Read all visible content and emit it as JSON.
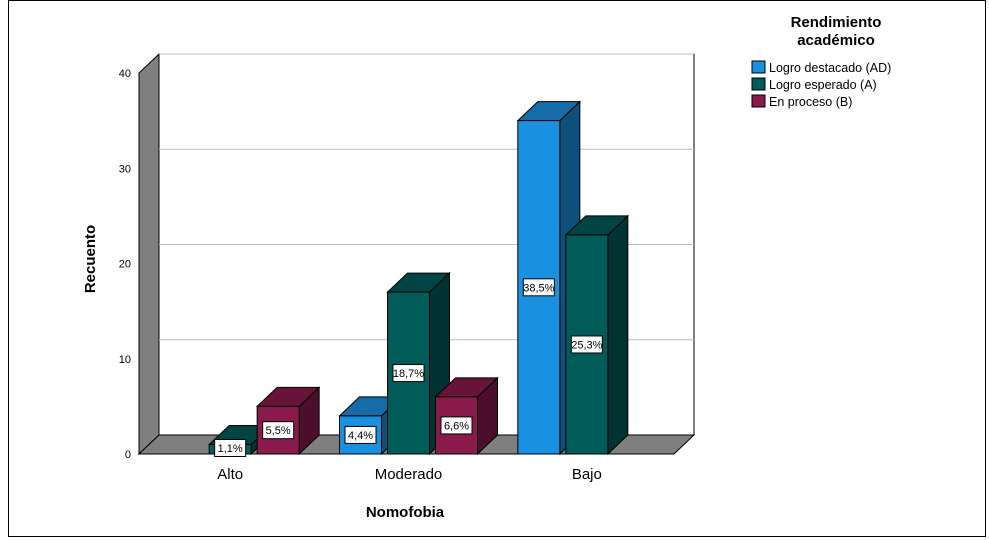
{
  "chart_data": {
    "type": "bar",
    "style": "3d-clustered",
    "title": "",
    "xlabel": "Nomofobia",
    "ylabel": "Recuento",
    "categories": [
      "Alto",
      "Moderado",
      "Bajo"
    ],
    "ylim": [
      0,
      40
    ],
    "yticks": [
      "0",
      "10",
      "20",
      "30",
      "40"
    ],
    "grid": true,
    "legend": {
      "title_line1": "Rendimiento",
      "title_line2": "académico",
      "placement": "right"
    },
    "series": [
      {
        "name": "Logro destacado (AD)",
        "color": "#1a90e0",
        "values": [
          0,
          4,
          35
        ],
        "labels": [
          "",
          "4,4%",
          "38,5%"
        ]
      },
      {
        "name": "Logro esperado (A)",
        "color": "#005c59",
        "values": [
          1,
          17,
          23
        ],
        "labels": [
          "1,1%",
          "18,7%",
          "25,3%"
        ]
      },
      {
        "name": "En proceso (B)",
        "color": "#8b1a4c",
        "values": [
          5,
          6,
          0
        ],
        "labels": [
          "5,5%",
          "6,6%",
          ""
        ]
      }
    ]
  }
}
